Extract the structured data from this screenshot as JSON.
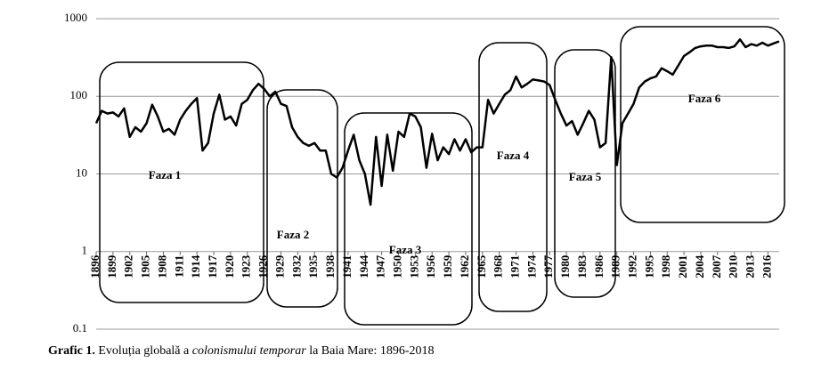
{
  "chart_data": {
    "type": "line",
    "log_scale": true,
    "grid": true,
    "x": [
      1896,
      1897,
      1898,
      1899,
      1900,
      1901,
      1902,
      1903,
      1904,
      1905,
      1906,
      1907,
      1908,
      1909,
      1910,
      1911,
      1912,
      1913,
      1914,
      1915,
      1916,
      1917,
      1918,
      1919,
      1920,
      1921,
      1922,
      1923,
      1924,
      1925,
      1926,
      1927,
      1928,
      1929,
      1930,
      1931,
      1932,
      1933,
      1934,
      1935,
      1936,
      1937,
      1938,
      1939,
      1940,
      1941,
      1942,
      1943,
      1944,
      1945,
      1946,
      1947,
      1948,
      1949,
      1950,
      1951,
      1952,
      1953,
      1954,
      1955,
      1956,
      1957,
      1958,
      1959,
      1960,
      1961,
      1962,
      1963,
      1964,
      1965,
      1966,
      1967,
      1968,
      1969,
      1970,
      1971,
      1972,
      1973,
      1974,
      1975,
      1976,
      1977,
      1978,
      1979,
      1980,
      1981,
      1982,
      1983,
      1984,
      1985,
      1986,
      1987,
      1988,
      1989,
      1990,
      1991,
      1992,
      1993,
      1994,
      1995,
      1996,
      1997,
      1998,
      1999,
      2000,
      2001,
      2002,
      2003,
      2004,
      2005,
      2006,
      2007,
      2008,
      2009,
      2010,
      2011,
      2012,
      2013,
      2014,
      2015,
      2016,
      2017,
      2018
    ],
    "series": [
      {
        "color": "#000000",
        "values": [
          45,
          65,
          60,
          62,
          55,
          70,
          30,
          40,
          35,
          45,
          78,
          55,
          35,
          38,
          32,
          50,
          65,
          80,
          95,
          20,
          25,
          60,
          105,
          50,
          55,
          42,
          80,
          90,
          120,
          145,
          125,
          100,
          115,
          80,
          75,
          40,
          30,
          25,
          23,
          25,
          20,
          20,
          10,
          9,
          12,
          20,
          32,
          15,
          10,
          4,
          30,
          7,
          32,
          11,
          35,
          30,
          60,
          55,
          40,
          12,
          33,
          15,
          22,
          18,
          28,
          20,
          28,
          19,
          22,
          22,
          90,
          60,
          80,
          105,
          120,
          180,
          130,
          145,
          165,
          160,
          155,
          140,
          90,
          60,
          42,
          48,
          32,
          45,
          65,
          50,
          22,
          25,
          320,
          13,
          45,
          60,
          80,
          130,
          155,
          170,
          180,
          230,
          210,
          190,
          250,
          330,
          370,
          420,
          440,
          450,
          450,
          430,
          430,
          420,
          440,
          540,
          430,
          470,
          450,
          490,
          450,
          480,
          510
        ]
      }
    ],
    "xlim": [
      1896,
      2018
    ],
    "xticks": [
      1896,
      1899,
      1902,
      1905,
      1908,
      1911,
      1914,
      1917,
      1920,
      1923,
      1926,
      1929,
      1932,
      1935,
      1938,
      1941,
      1944,
      1947,
      1950,
      1953,
      1956,
      1959,
      1962,
      1965,
      1968,
      1971,
      1974,
      1977,
      1980,
      1983,
      1986,
      1989,
      1992,
      1995,
      1998,
      2001,
      2004,
      2007,
      2010,
      2013,
      2016
    ],
    "ylim": [
      0.1,
      1000
    ],
    "yticks": [
      0.1,
      1,
      10,
      100,
      1000
    ],
    "annotations": [
      "Faza 1",
      "Faza 2",
      "Faza 3",
      "Faza 4",
      "Faza 5",
      "Faza 6"
    ],
    "caption": [
      "Grafic 1.",
      "Evoluția globală a",
      "colonismului temporar",
      "la Baia Mare: 1896-2018"
    ]
  }
}
